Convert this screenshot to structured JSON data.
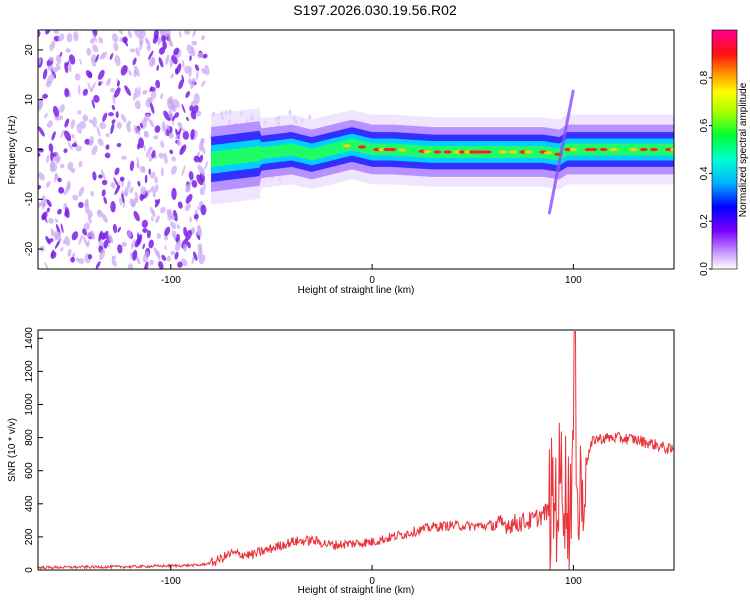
{
  "title": "S197.2026.030.19.56.R02",
  "colors": {
    "line": "#e8343a",
    "speckle_dark": "#7a1fe8",
    "speckle_light": "#c9a7f5",
    "axis": "#000000"
  },
  "chart_data": [
    {
      "type": "heatmap",
      "title": "S197.2026.030.19.56.R02",
      "xlabel": "Height of straight line (km)",
      "ylabel": "Frequency (Hz)",
      "xlim": [
        -166,
        150
      ],
      "ylim": [
        -24,
        24
      ],
      "xticks": [
        -100,
        0,
        100
      ],
      "yticks": [
        -20,
        -10,
        0,
        10,
        20
      ],
      "colorbar": {
        "label": "Normalized spectral amplitude",
        "range": [
          0,
          1
        ],
        "ticks": [
          "0.0",
          "0.2",
          "0.4",
          "0.6",
          "0.8"
        ],
        "colormap": "rainbow (violet-blue-cyan-green-yellow-orange-red-magenta)"
      },
      "ridge_frequency": {
        "x": [
          -80,
          -60,
          -40,
          -30,
          -20,
          -10,
          0,
          10,
          30,
          50,
          70,
          85,
          93,
          97,
          110,
          130,
          150
        ],
        "y": [
          -2,
          -1,
          0,
          -1,
          0,
          1,
          0,
          0,
          -0.5,
          -0.5,
          -0.5,
          -0.5,
          -1,
          0,
          0,
          0,
          0
        ]
      },
      "noise_region_x": [
        -166,
        -82
      ]
    },
    {
      "type": "line",
      "xlabel": "Height of straight line (km)",
      "ylabel": "SNR (10 * v/v)",
      "xlim": [
        -166,
        150
      ],
      "ylim": [
        0,
        1450
      ],
      "xticks": [
        -100,
        0,
        100
      ],
      "yticks": [
        0,
        200,
        400,
        600,
        800,
        1000,
        1200,
        1400
      ],
      "series": [
        {
          "x": [
            -166,
            -140,
            -120,
            -100,
            -85,
            -78,
            -70,
            -60,
            -50,
            -40,
            -30,
            -20,
            -10,
            0,
            10,
            20,
            30,
            40,
            50,
            60,
            70,
            80,
            88,
            92,
            95,
            98,
            100,
            102,
            105,
            110,
            120,
            130,
            140,
            150
          ],
          "y": [
            15,
            18,
            20,
            25,
            30,
            50,
            100,
            90,
            130,
            170,
            180,
            150,
            160,
            170,
            200,
            230,
            260,
            270,
            265,
            270,
            280,
            300,
            360,
            450,
            600,
            300,
            900,
            300,
            600,
            790,
            800,
            790,
            760,
            720
          ]
        }
      ]
    }
  ]
}
